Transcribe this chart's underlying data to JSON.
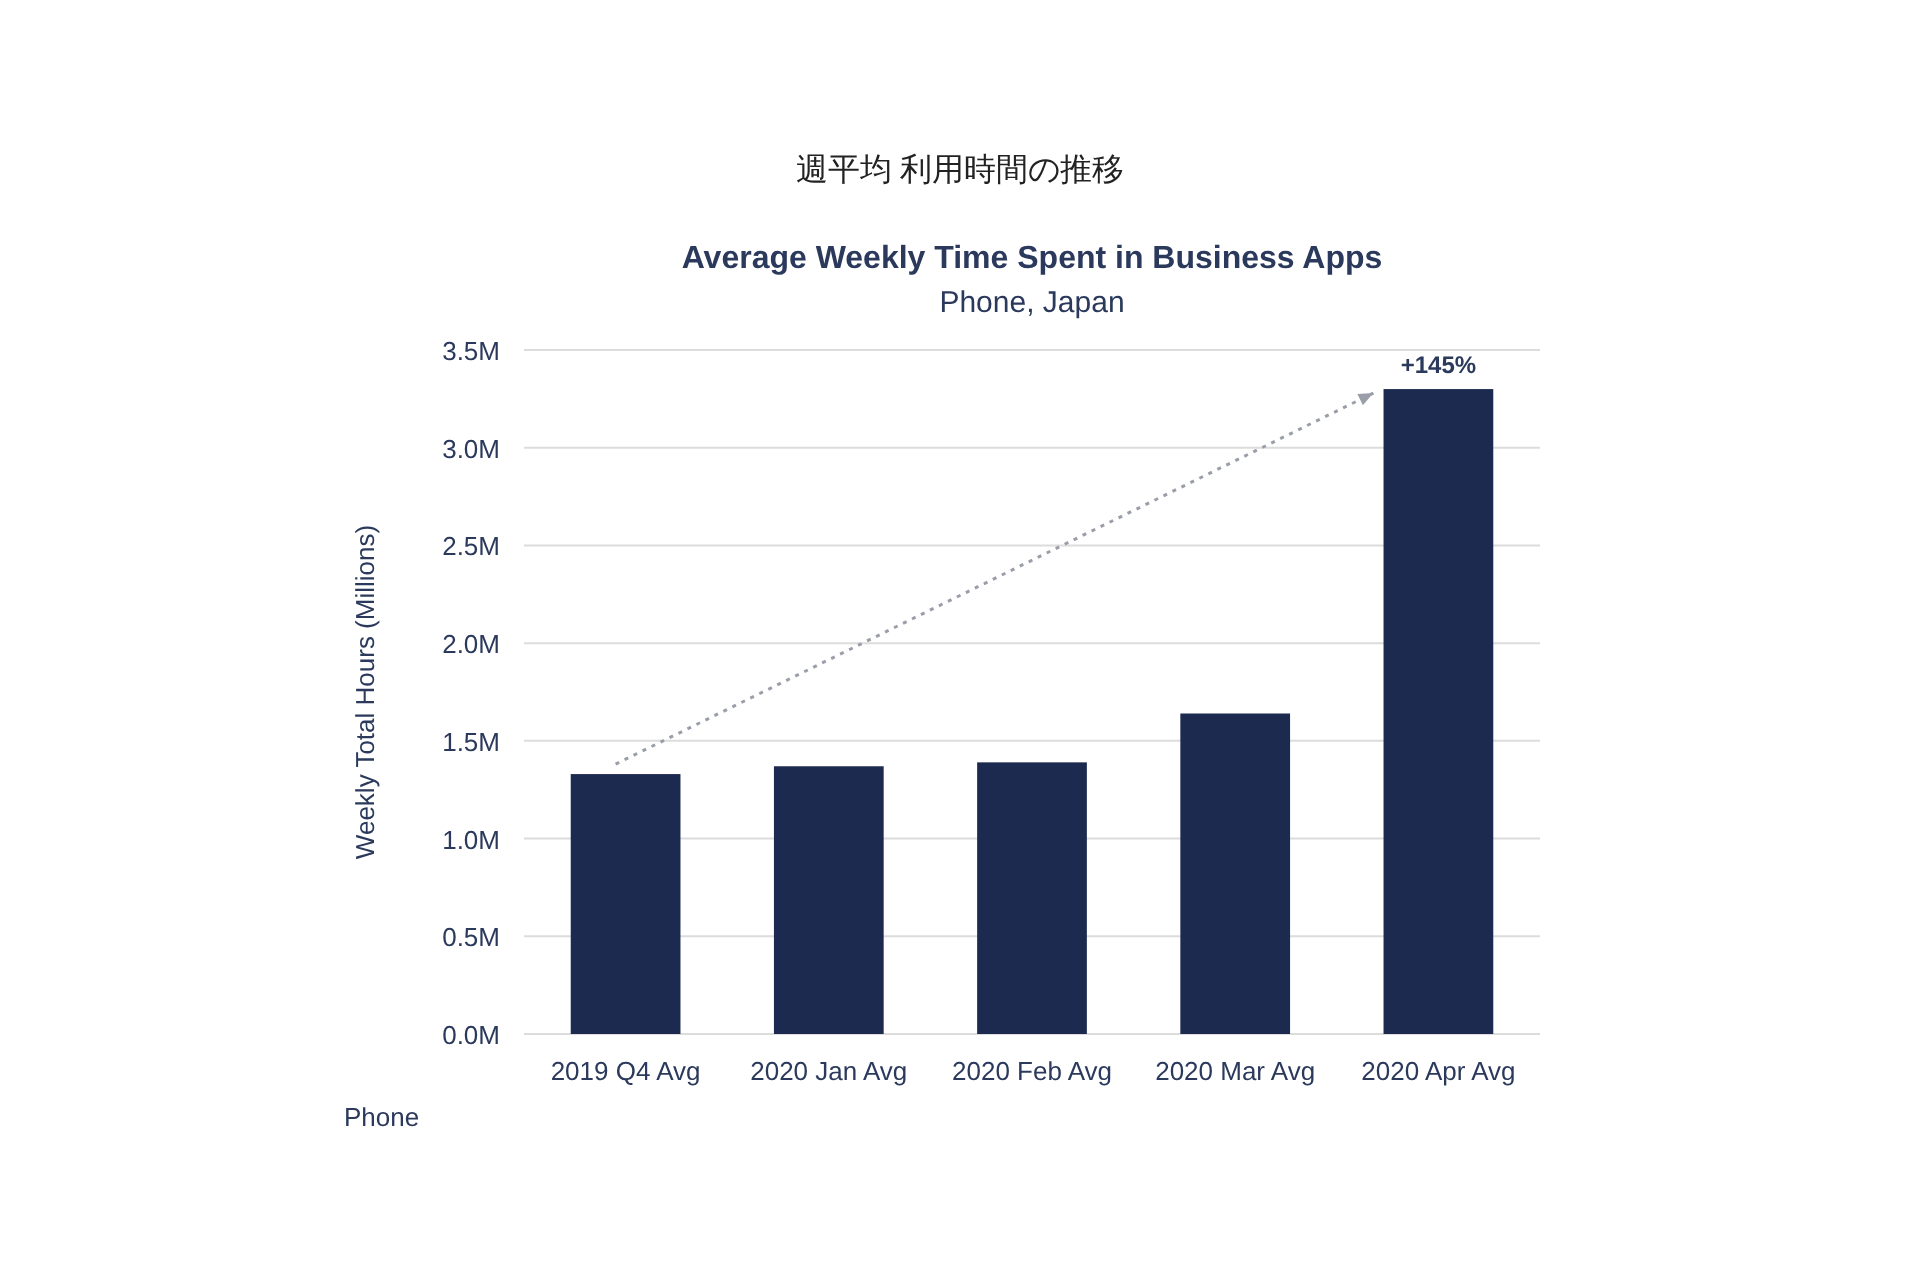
{
  "chart_data": {
    "type": "bar",
    "title": "Average Weekly Time Spent in Business Apps",
    "subtitle": "Phone, Japan",
    "ylabel": "Weekly Total Hours (Millions)",
    "categories": [
      "2019 Q4 Avg",
      "2020 Jan Avg",
      "2020 Feb Avg",
      "2020 Mar Avg",
      "2020 Apr Avg"
    ],
    "values": [
      1.33,
      1.37,
      1.39,
      1.64,
      3.3
    ],
    "color": "#1b2a4e",
    "ylim": [
      0,
      3.5
    ],
    "yticks": [
      {
        "value": 0,
        "label": "0.0M"
      },
      {
        "value": 0.5,
        "label": "0.5M"
      },
      {
        "value": 1,
        "label": "1.0M"
      },
      {
        "value": 1.5,
        "label": "1.5M"
      },
      {
        "value": 2,
        "label": "2.0M"
      },
      {
        "value": 2.5,
        "label": "2.5M"
      },
      {
        "value": 3,
        "label": "3.0M"
      },
      {
        "value": 3.5,
        "label": "3.5M"
      }
    ],
    "grid": "y",
    "annotations": [
      "週平均 利用時間の推移",
      {
        "text": "+145%",
        "x": "2020 Apr Avg",
        "y": 3.3
      },
      "Phone"
    ]
  }
}
